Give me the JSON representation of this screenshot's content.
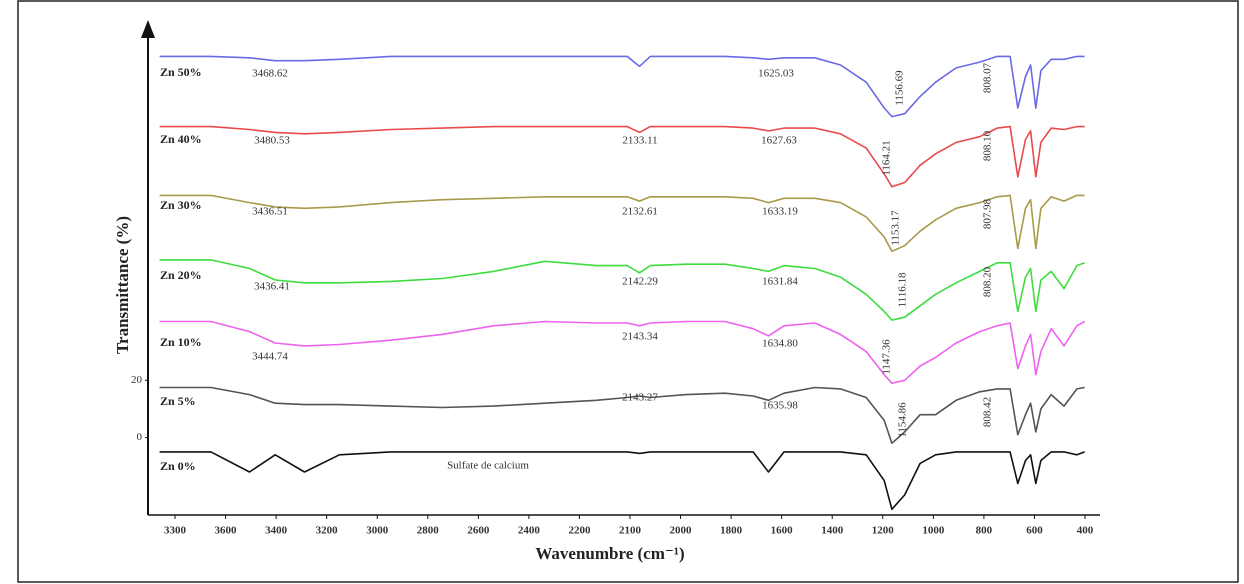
{
  "chart_data": {
    "type": "line",
    "xlabel": "Wavenumbre (cm⁻¹)",
    "ylabel": "Transmittance (%)",
    "xtick_labels": [
      "3300",
      "3600",
      "3400",
      "3200",
      "3000",
      "2800",
      "2600",
      "2400",
      "2200",
      "2100",
      "2000",
      "1800",
      "1600",
      "1400",
      "1200",
      "1000",
      "800",
      "600",
      "400"
    ],
    "xlim": [
      4045,
      340
    ],
    "ylim": [
      -27,
      145
    ],
    "yticks": [
      0,
      20
    ],
    "x": [
      4000,
      3800,
      3650,
      3550,
      3436,
      3300,
      3100,
      2900,
      2700,
      2500,
      2300,
      2180,
      2132,
      2090,
      1950,
      1800,
      1690,
      1630,
      1570,
      1450,
      1350,
      1250,
      1180,
      1150,
      1100,
      1040,
      980,
      900,
      808,
      740,
      690,
      660,
      630,
      610,
      590,
      570,
      530,
      480,
      430,
      400
    ],
    "series": [
      {
        "name": "Zn 50%",
        "color": "#6a6ae6",
        "values": [
          133,
          133,
          132.5,
          131.5,
          131.5,
          132,
          133,
          133,
          133,
          133,
          133,
          133,
          129.5,
          133,
          133,
          133,
          132.5,
          132,
          132.5,
          132.5,
          130,
          124,
          115,
          112,
          113,
          119,
          124,
          129,
          131,
          133,
          133,
          115,
          126,
          130,
          115,
          128,
          132,
          132,
          133,
          133
        ]
      },
      {
        "name": "Zn 40%",
        "color": "#e84a4a",
        "values": [
          108.5,
          108.5,
          107.5,
          106.5,
          106,
          106.5,
          107.5,
          108,
          108.5,
          108.5,
          108.5,
          108.5,
          106.5,
          108.5,
          108.5,
          108.5,
          108,
          107,
          108,
          108,
          106,
          101,
          92,
          87.5,
          89,
          95,
          99,
          103,
          105,
          108,
          108.5,
          91,
          104,
          107,
          91,
          103,
          108,
          107.5,
          108.5,
          108.5
        ]
      },
      {
        "name": "Zn 30%",
        "color": "#a89a4a",
        "values": [
          84.5,
          84.5,
          82,
          80.5,
          80,
          80.5,
          82,
          83,
          83.5,
          84,
          84,
          84,
          82.5,
          84,
          84,
          84,
          83.5,
          82,
          83.5,
          83.5,
          82,
          77,
          70,
          65,
          67,
          72,
          76,
          80,
          82,
          84,
          84.5,
          66,
          80,
          83,
          66,
          80,
          84,
          82.5,
          84.5,
          84.5
        ]
      },
      {
        "name": "Zn 20%",
        "color": "#3fdc3f",
        "values": [
          62,
          62,
          59,
          55,
          54,
          54,
          54.5,
          55.5,
          58,
          61.5,
          60,
          60,
          57.5,
          60,
          60.5,
          60.5,
          59,
          58,
          60,
          59,
          56,
          50,
          44,
          41,
          42,
          46,
          50,
          54,
          58,
          61,
          61,
          44,
          56,
          59,
          44,
          55,
          58,
          52,
          60,
          61
        ]
      },
      {
        "name": "Zn 10%",
        "color": "#ee62ee",
        "values": [
          40.5,
          40.5,
          37,
          33,
          32,
          32.5,
          34,
          36,
          39,
          40.5,
          40,
          40,
          39,
          40,
          40.5,
          40.5,
          38,
          35.5,
          39,
          40,
          36,
          30,
          22,
          19,
          20,
          25,
          28,
          33,
          37,
          39,
          40,
          24,
          32,
          36,
          22,
          30,
          38,
          32,
          39,
          40.5
        ]
      },
      {
        "name": "Zn 5%",
        "color": "#555555",
        "values": [
          17.5,
          17.5,
          15,
          12,
          11.5,
          11.5,
          11,
          10.5,
          11,
          12,
          13,
          14,
          14.5,
          14,
          15,
          15.5,
          14.5,
          13,
          15.5,
          17.5,
          17,
          14,
          6,
          -2,
          2,
          8,
          8,
          13,
          16,
          17,
          17,
          1,
          8,
          12,
          2,
          10,
          15,
          11,
          17,
          17.5
        ]
      },
      {
        "name": "Zn 0%",
        "color": "#111111",
        "values": [
          -5,
          -5,
          -12,
          -6,
          -12,
          -6,
          -5,
          -5,
          -5,
          -5,
          -5,
          -5,
          -5.5,
          -5,
          -5,
          -5,
          -5,
          -12,
          -5,
          -5,
          -5,
          -6,
          -15,
          -25,
          -20,
          -9,
          -6,
          -5,
          -5,
          -5,
          -5,
          -16,
          -8,
          -6,
          -16,
          -8,
          -5,
          -5,
          -6,
          -5
        ]
      }
    ],
    "annotations": [
      "3468.62",
      "1625.03",
      "1156.69",
      "808.07",
      "3480.53",
      "2133.11",
      "1627.63",
      "1164.21",
      "808.10",
      "3436.51",
      "2132.61",
      "1633.19",
      "1153.17",
      "807.98",
      "3436.41",
      "2142.29",
      "1631.84",
      "1116.18",
      "808.20",
      "3444.74",
      "2143.34",
      "1634.80",
      "1147.36",
      "2143.27",
      "1635.98",
      "1154.86",
      "808.42",
      "Sulfate de calcium"
    ]
  }
}
